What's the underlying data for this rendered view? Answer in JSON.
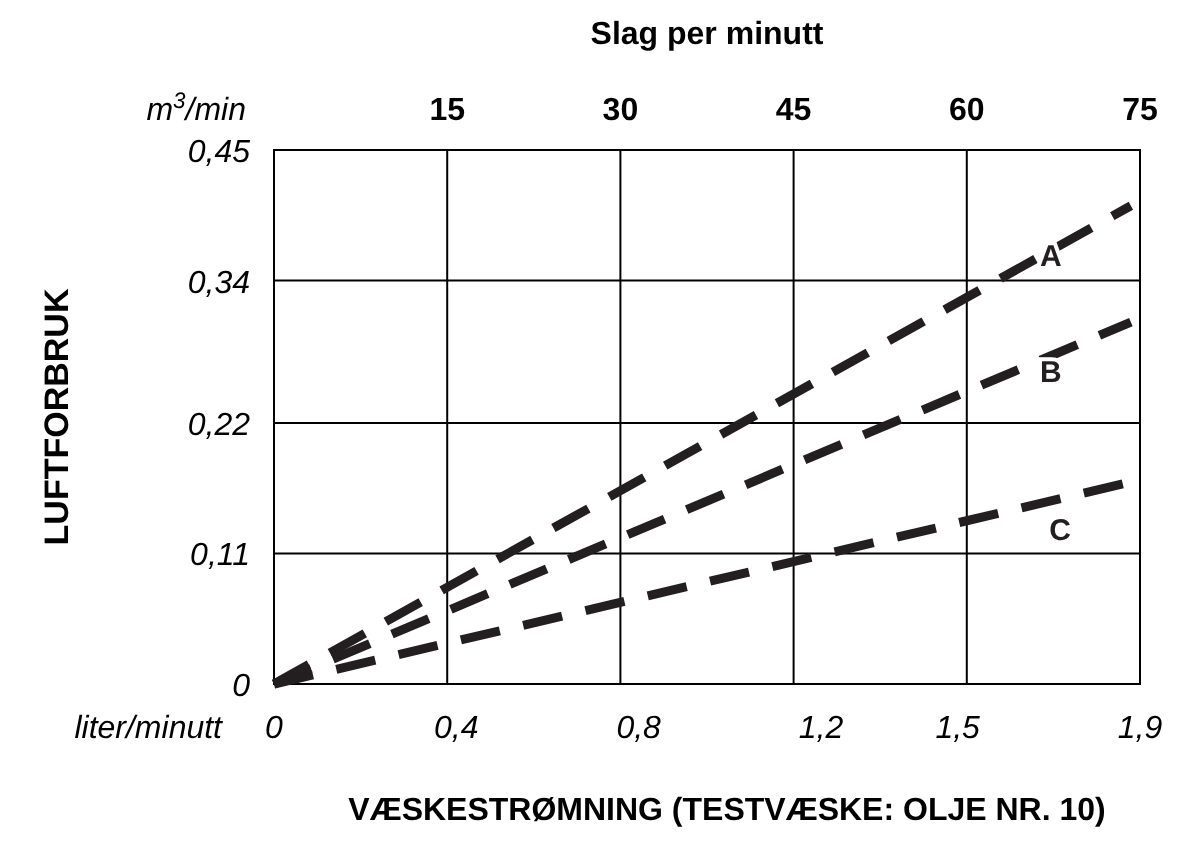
{
  "chart_data": {
    "type": "line",
    "xlabel": "VÆSKESTRØMNING (TESTVÆSKE: OLJE NR. 10)",
    "ylabel": "LUFTFORBRUK",
    "x2label": "Slag per minutt",
    "annotations": [
      "m$^{3}$/min",
      "liter/minutt"
    ],
    "xlim": [
      0,
      1.9
    ],
    "xticks": [
      {
        "value": 0,
        "label": "0"
      },
      {
        "value": 0.4,
        "label": "0,4"
      },
      {
        "value": 0.8,
        "label": "0,8"
      },
      {
        "value": 1.2,
        "label": "1,2"
      },
      {
        "value": 1.5,
        "label": "1,5"
      },
      {
        "value": 1.9,
        "label": "1,9"
      }
    ],
    "x2lim": [
      0,
      75
    ],
    "x2ticks": [
      15,
      30,
      45,
      60,
      75
    ],
    "ylim": [
      0,
      0.45
    ],
    "yticks": [
      {
        "value": 0,
        "label": "0"
      },
      {
        "value": 0.11,
        "label": "0,11"
      },
      {
        "value": 0.22,
        "label": "0,22"
      },
      {
        "value": 0.34,
        "label": "0,34"
      },
      {
        "value": 0.45,
        "label": "0,45"
      }
    ],
    "grid": true,
    "line_style": "dashed",
    "series": [
      {
        "name": "A",
        "color": "#231f20",
        "x": [
          0,
          1.88
        ],
        "values": [
          0,
          0.403
        ]
      },
      {
        "name": "B",
        "color": "#231f20",
        "x": [
          0,
          1.88
        ],
        "values": [
          0,
          0.305
        ]
      },
      {
        "name": "C",
        "color": "#231f20",
        "x": [
          0,
          1.9
        ],
        "values": [
          0,
          0.172
        ]
      }
    ]
  }
}
